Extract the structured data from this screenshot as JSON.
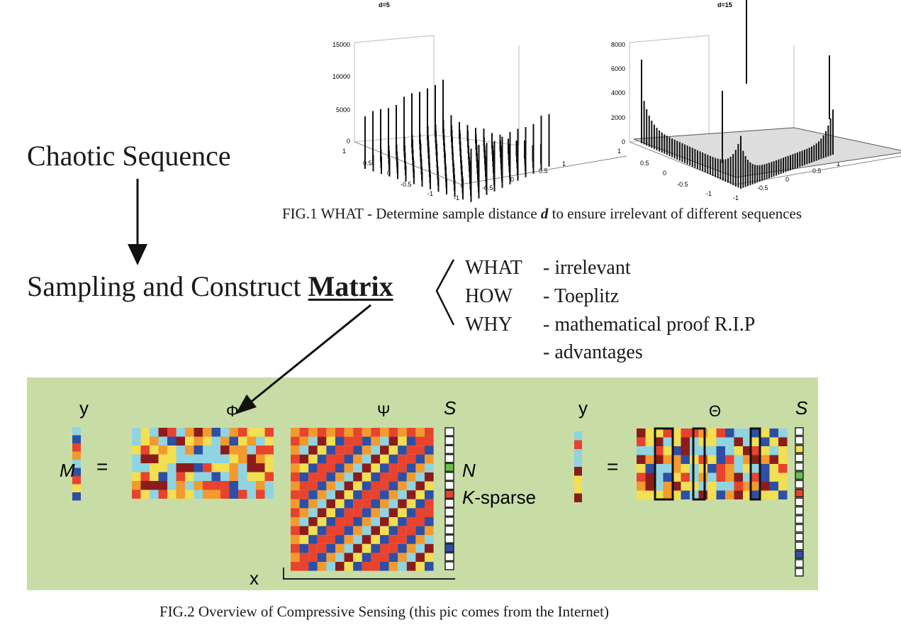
{
  "main": {
    "title": "Chaotic Sequence",
    "step2_prefix": "Sampling and Construct ",
    "step2_highlight": "Matrix"
  },
  "brace_items": [
    {
      "key": "WHAT",
      "value": "- irrelevant"
    },
    {
      "key": "HOW",
      "value": "- Toeplitz"
    },
    {
      "key": "WHY",
      "value": "- mathematical proof R.I.P"
    },
    {
      "key": "",
      "value": "- advantages"
    }
  ],
  "fig1": {
    "caption_prefix": "FIG.1 WHAT - Determine sample distance ",
    "caption_var": "d",
    "caption_suffix": " to ensure irrelevant of different sequences",
    "plots": [
      {
        "title": "d=5",
        "z_ticks": [
          "0",
          "5000",
          "10000",
          "15000"
        ],
        "x_ticks": [
          "-1",
          "-0.5",
          "0",
          "0.5",
          "1"
        ],
        "y_ticks": [
          "-1",
          "-0.5",
          "0",
          "0.5",
          "1"
        ]
      },
      {
        "title": "d=15",
        "z_ticks": [
          "0",
          "2000",
          "4000",
          "6000",
          "8000"
        ],
        "x_ticks": [
          "-1",
          "-0.5",
          "0",
          "0.5",
          "1"
        ],
        "y_ticks": [
          "-1",
          "-0.5",
          "0",
          "0.5",
          "1"
        ]
      }
    ]
  },
  "fig2": {
    "caption": "FIG.2 Overview of Compressive Sensing (this pic comes from the Internet)",
    "labels": {
      "y": "y",
      "M": "M",
      "eq": "=",
      "phi": "Φ",
      "psi": "Ψ",
      "s": "S",
      "N": "N",
      "ksparse": "K-sparse",
      "x": "x",
      "theta": "Θ"
    },
    "colors": {
      "red": "#e8432e",
      "orange": "#f39a2e",
      "yellow": "#f2df52",
      "lightblue": "#8fd4e0",
      "blue": "#2d4fa6",
      "darkred": "#8c1c1c",
      "green": "#6abf4b",
      "white": "#ffffff"
    }
  }
}
